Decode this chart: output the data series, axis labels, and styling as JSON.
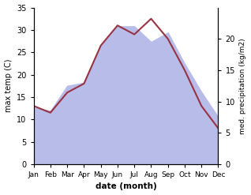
{
  "months": [
    "Jan",
    "Feb",
    "Mar",
    "Apr",
    "May",
    "Jun",
    "Jul",
    "Aug",
    "Sep",
    "Oct",
    "Nov",
    "Dec"
  ],
  "temp": [
    13.0,
    11.5,
    16.0,
    18.0,
    26.5,
    31.0,
    29.0,
    32.5,
    28.0,
    21.0,
    13.0,
    8.0
  ],
  "precip": [
    9.0,
    8.5,
    12.5,
    13.0,
    19.0,
    22.0,
    22.0,
    19.5,
    21.0,
    16.0,
    11.5,
    7.5
  ],
  "temp_color": "#993344",
  "precip_fill_color": "#b8bce8",
  "temp_ylim": [
    0,
    35
  ],
  "temp_yticks": [
    0,
    5,
    10,
    15,
    20,
    25,
    30,
    35
  ],
  "precip_ylim": [
    0,
    25.0
  ],
  "precip_yticks": [
    0,
    5,
    10,
    15,
    20
  ],
  "xlabel": "date (month)",
  "ylabel_left": "max temp (C)",
  "ylabel_right": "med. precipitation (kg/m2)",
  "figsize": [
    3.18,
    2.47
  ],
  "dpi": 100
}
